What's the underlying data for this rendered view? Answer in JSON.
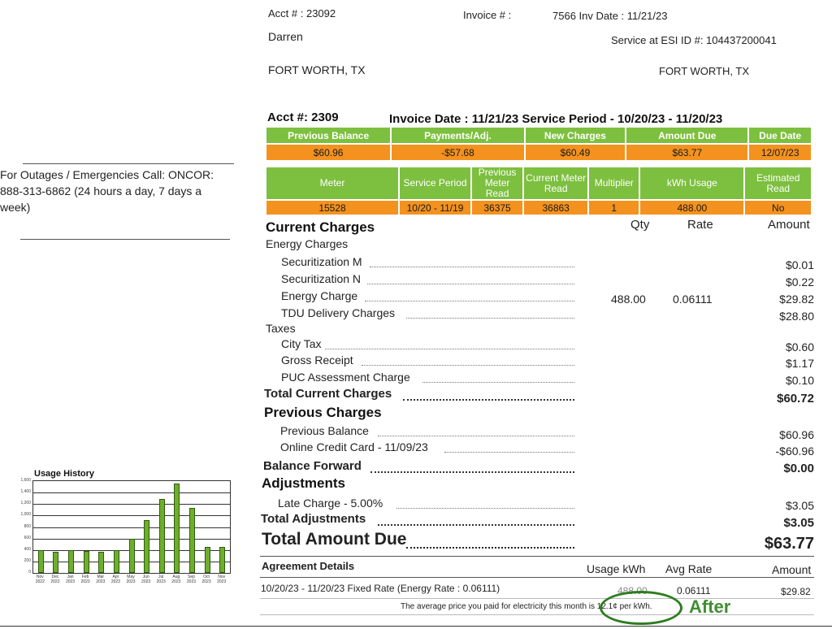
{
  "header": {
    "acct_label": "Acct # : 23092",
    "invoice_label": "Invoice # :",
    "invoice_no_date": "7566  Inv Date : 11/21/23",
    "customer_name": "Darren",
    "esi_id": "Service at ESI ID #: 104437200041",
    "city_left": "FORT WORTH, TX",
    "city_right": "FORT WORTH, TX"
  },
  "summary": {
    "acct_title": "Acct #: 2309",
    "invoice_period": "Invoice Date : 11/21/23 Service Period - 10/20/23 - 11/20/23",
    "headers": [
      "Previous Balance",
      "Payments/Adj.",
      "New Charges",
      "Amount Due",
      "Due Date"
    ],
    "values": [
      "$60.96",
      "-$57.68",
      "$60.49",
      "$63.77",
      "12/07/23"
    ]
  },
  "meter": {
    "headers": [
      "Meter",
      "Service Period",
      "Previous Meter Read",
      "Current Meter Read",
      "Multiplier",
      "kWh Usage",
      "Estimated Read"
    ],
    "values": [
      "15528",
      "10/20 - 11/19",
      "36375",
      "36863",
      "1",
      "488.00",
      "No"
    ]
  },
  "outage": {
    "text": "For Outages / Emergencies Call: ONCOR: 888-313-6862 (24 hours a day, 7 days a week)"
  },
  "charges": {
    "title": "Current Charges",
    "col_qty": "Qty",
    "col_rate": "Rate",
    "col_amount": "Amount",
    "energy_group": "Energy Charges",
    "taxes_group": "Taxes",
    "energy_items": [
      {
        "label": "Securitization M",
        "qty": "",
        "rate": "",
        "amount": "$0.01"
      },
      {
        "label": "Securitization N",
        "qty": "",
        "rate": "",
        "amount": "$0.22"
      },
      {
        "label": "Energy Charge",
        "qty": "488.00",
        "rate": "0.06111",
        "amount": "$29.82"
      },
      {
        "label": "TDU Delivery Charges",
        "qty": "",
        "rate": "",
        "amount": "$28.80"
      }
    ],
    "tax_items": [
      {
        "label": "City Tax",
        "amount": "$0.60"
      },
      {
        "label": "Gross Receipt",
        "amount": "$1.17"
      },
      {
        "label": "PUC Assessment Charge",
        "amount": "$0.10"
      }
    ],
    "total_label": "Total Current Charges",
    "total_amount": "$60.72"
  },
  "previous": {
    "title": "Previous Charges",
    "items": [
      {
        "label": "Previous Balance",
        "amount": "$60.96"
      },
      {
        "label": "Online Credit Card - 11/09/23",
        "amount": "-$60.96"
      }
    ],
    "forward_label": "Balance Forward",
    "forward_amount": "$0.00"
  },
  "adjustments": {
    "title": "Adjustments",
    "items": [
      {
        "label": "Late Charge - 5.00%",
        "amount": "$3.05"
      }
    ],
    "total_label": "Total Adjustments",
    "total_amount": "$3.05"
  },
  "total_due": {
    "label": "Total Amount Due",
    "amount": "$63.77"
  },
  "agreement": {
    "title": "Agreement Details",
    "col_usage": "Usage kWh",
    "col_avg": "Avg Rate",
    "col_amount": "Amount",
    "row_label": "10/20/23 - 11/20/23 Fixed Rate (Energy Rate : 0.06111)",
    "row_usage": "488.00",
    "row_avg": "0.06111",
    "row_amount": "$29.82",
    "avg_note": "The average price you paid for electricity this month is 12.1¢ per kWh."
  },
  "annotation": {
    "after_label": "After",
    "oval_color": "#2e7d1f"
  },
  "colors": {
    "green": "#7dbf3f",
    "orange": "#f3921f"
  },
  "chart_data": {
    "type": "bar",
    "title": "Usage History",
    "categories": [
      "Nov 2022",
      "Dec 2022",
      "Jan 2023",
      "Feb 2023",
      "Mar 2023",
      "Apr 2023",
      "May 2023",
      "Jun 2023",
      "Jul 2023",
      "Aug 2023",
      "Sep 2023",
      "Oct 2023",
      "Nov 2023"
    ],
    "values": [
      400,
      370,
      390,
      380,
      370,
      400,
      600,
      920,
      1290,
      1560,
      1130,
      460,
      460
    ],
    "ylim": [
      0,
      1600
    ],
    "yticks": [
      "0",
      "200",
      "400",
      "600",
      "800",
      "1,000",
      "1,200",
      "1,400",
      "1,600"
    ],
    "grid": true
  }
}
